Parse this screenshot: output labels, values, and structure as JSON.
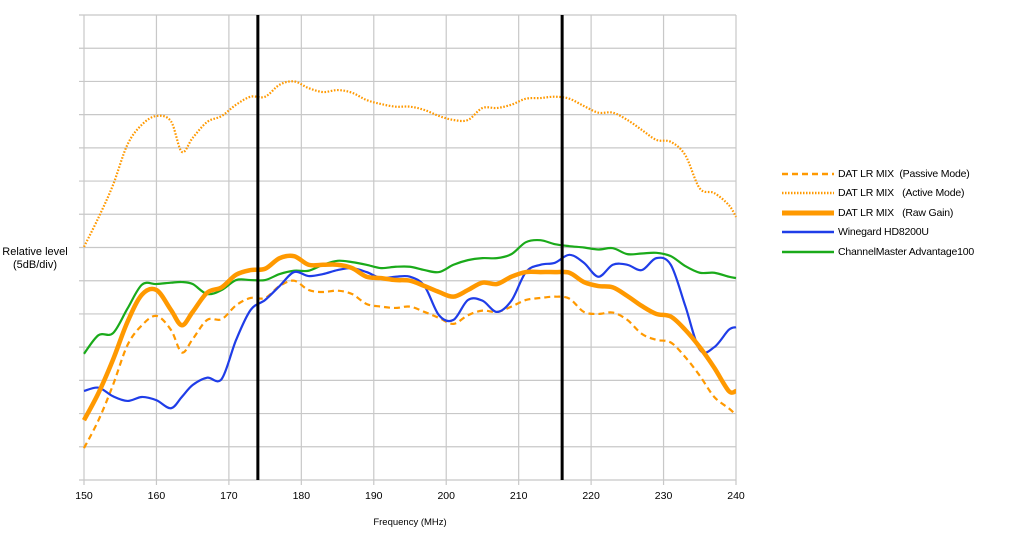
{
  "chart_data": {
    "type": "line",
    "title": "",
    "xlabel": "Frequency (MHz)",
    "ylabel": "Relative level\n(5dB/div)",
    "ylabel_lines": [
      "Relative level",
      "(5dB/div)"
    ],
    "xlim": [
      150,
      240
    ],
    "ylim": [
      0,
      70
    ],
    "y_units": "dB relative (0 = bottom gridline), 5 dB per division",
    "x_ticks": [
      150,
      160,
      170,
      180,
      190,
      200,
      210,
      220,
      230,
      240
    ],
    "y_divisions": 14,
    "y_tick_labels": [],
    "grid": true,
    "legend_position": "right",
    "vertical_markers": [
      174,
      216
    ],
    "x": [
      150,
      152,
      154,
      156,
      158,
      160,
      162,
      163.5,
      165,
      167,
      169,
      171,
      173,
      175,
      177,
      179,
      181,
      183,
      185,
      187,
      189,
      191,
      193,
      195,
      197,
      199,
      201,
      203,
      205,
      207,
      209,
      211,
      213,
      215,
      217,
      219,
      221,
      223,
      225,
      227,
      229,
      231,
      233,
      235,
      237,
      239,
      240
    ],
    "series": [
      {
        "name": "DAT LR MIX  (Passive Mode)",
        "color": "#ff9900",
        "style": "dashed",
        "width": 2.2,
        "values": [
          4.8,
          9.0,
          14.3,
          20.3,
          23.3,
          24.7,
          22.6,
          19.2,
          21.2,
          24.1,
          24.2,
          26.3,
          27.4,
          27.4,
          29.2,
          30.0,
          28.6,
          28.3,
          28.5,
          28.0,
          26.5,
          26.1,
          25.9,
          26.1,
          25.3,
          24.4,
          23.5,
          24.8,
          25.5,
          25.3,
          26.1,
          27.1,
          27.4,
          27.6,
          27.3,
          25.3,
          25.0,
          25.2,
          24.1,
          22.0,
          21.1,
          20.7,
          18.5,
          15.7,
          12.5,
          10.8,
          9.8
        ]
      },
      {
        "name": "DAT LR MIX   (Active Mode)",
        "color": "#ff9900",
        "style": "dotted",
        "width": 2.2,
        "values": [
          35.1,
          39.5,
          44.4,
          50.5,
          53.5,
          54.8,
          54.0,
          49.4,
          51.5,
          53.9,
          54.8,
          56.5,
          57.7,
          57.7,
          59.5,
          60.0,
          59.0,
          58.4,
          58.7,
          58.3,
          57.2,
          56.6,
          56.2,
          56.2,
          55.7,
          54.8,
          54.2,
          54.2,
          56.0,
          56.0,
          56.5,
          57.4,
          57.5,
          57.7,
          57.4,
          56.3,
          55.3,
          55.3,
          54.2,
          52.7,
          51.2,
          50.9,
          48.9,
          43.9,
          43.2,
          41.4,
          39.6
        ]
      },
      {
        "name": "DAT LR MIX   (Raw Gain)",
        "color": "#ff9900",
        "style": "solid",
        "width": 4.5,
        "values": [
          9.0,
          13.1,
          18.1,
          23.8,
          27.9,
          28.6,
          25.6,
          23.3,
          25.3,
          28.2,
          29.0,
          30.9,
          31.6,
          31.8,
          33.4,
          33.7,
          32.4,
          32.4,
          32.4,
          31.9,
          30.6,
          30.4,
          30.1,
          30.0,
          29.2,
          28.3,
          27.6,
          28.6,
          29.7,
          29.5,
          30.6,
          31.3,
          31.3,
          31.3,
          31.2,
          29.8,
          29.2,
          29.0,
          27.7,
          26.2,
          25.0,
          24.6,
          22.6,
          20.0,
          16.9,
          13.4,
          13.4
        ]
      },
      {
        "name": "Winegard HD8200U",
        "color": "#1f3de8",
        "style": "solid",
        "width": 2.2,
        "values": [
          13.4,
          13.9,
          12.6,
          11.9,
          12.5,
          12.0,
          10.8,
          12.5,
          14.3,
          15.4,
          15.2,
          21.1,
          25.6,
          27.1,
          29.2,
          31.3,
          30.7,
          31.0,
          31.6,
          31.9,
          31.3,
          30.4,
          30.6,
          30.6,
          29.2,
          24.8,
          24.1,
          27.1,
          27.0,
          25.3,
          27.0,
          31.3,
          32.4,
          32.7,
          33.9,
          32.7,
          30.6,
          32.4,
          32.4,
          31.6,
          33.4,
          32.4,
          26.2,
          19.6,
          20.0,
          22.6,
          23.0
        ]
      },
      {
        "name": "ChannelMaster Advantage100",
        "color": "#1aaa1a",
        "style": "solid",
        "width": 2.2,
        "values": [
          19.0,
          21.8,
          22.1,
          25.8,
          29.4,
          29.5,
          29.7,
          29.8,
          29.5,
          28.0,
          28.6,
          30.1,
          30.1,
          30.1,
          31.0,
          31.5,
          31.5,
          32.4,
          33.0,
          32.8,
          32.4,
          31.9,
          32.1,
          32.1,
          31.6,
          31.3,
          32.4,
          33.1,
          33.4,
          33.4,
          34.0,
          35.8,
          36.1,
          35.5,
          35.2,
          35.0,
          34.7,
          34.9,
          34.0,
          34.1,
          34.2,
          33.7,
          32.2,
          31.2,
          31.2,
          30.6,
          30.4
        ]
      }
    ]
  }
}
